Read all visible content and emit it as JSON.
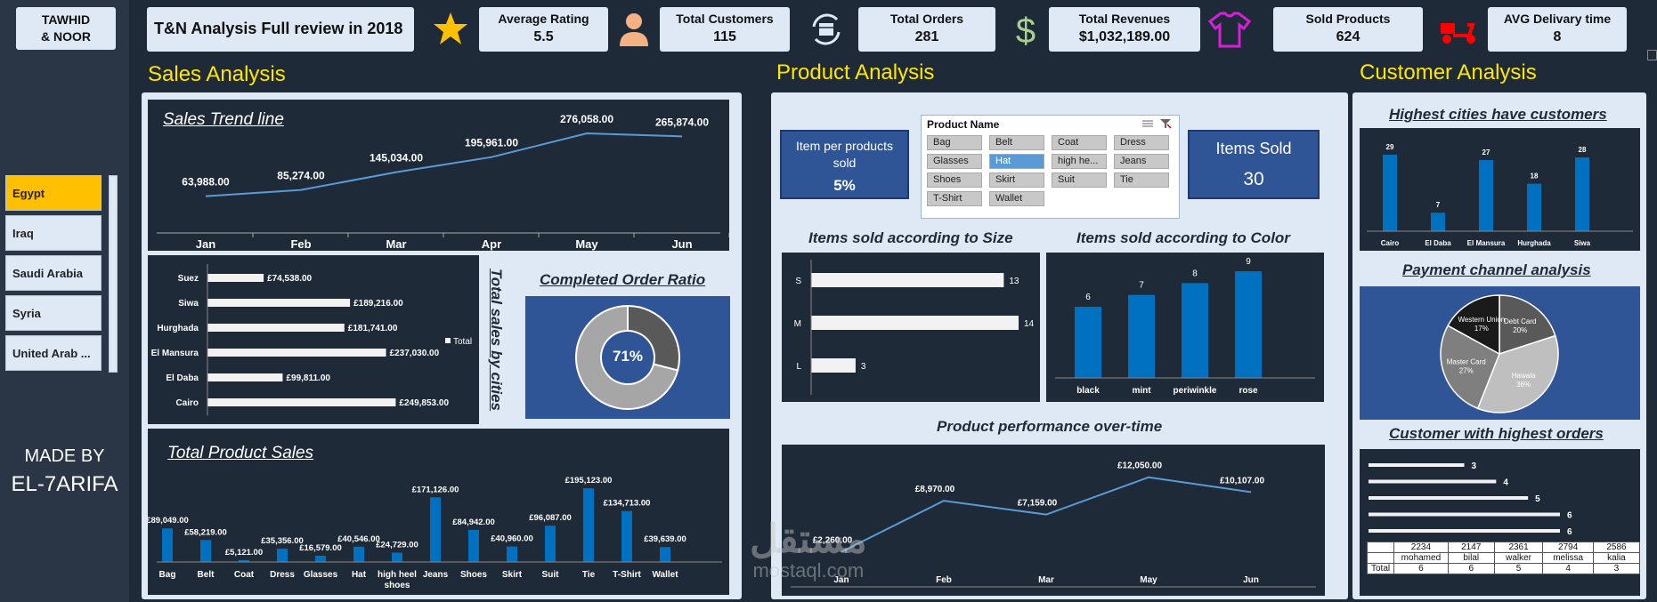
{
  "brand": {
    "line1": "TAWHID",
    "line2": "& NOOR"
  },
  "dashboard_title": "T&N Analysis Full review in 2018",
  "kpis": [
    {
      "label": "Average Rating",
      "value": "5.5"
    },
    {
      "label": "Total Customers",
      "value": "115"
    },
    {
      "label": "Total Orders",
      "value": "281"
    },
    {
      "label": "Total Revenues",
      "value": "$1,032,189.00"
    },
    {
      "label": "Sold Products",
      "value": "624"
    },
    {
      "label": "AVG Delivary time",
      "value": "8"
    }
  ],
  "icons": {
    "rating": "star-icon",
    "customers": "person-icon",
    "orders": "box-cycle-icon",
    "revenues": "dollar-icon",
    "products": "tshirt-icon",
    "delivery": "scooter-icon"
  },
  "colors": {
    "accent_yellow": "#ffe600",
    "bar_blue": "#0070c0",
    "panel_blue": "#2f5597",
    "dark": "#1f2a38",
    "light": "#dfe9f5",
    "selected": "#ffc000"
  },
  "country_slicer": {
    "items": [
      "Egypt",
      "Iraq",
      "Saudi Arabia",
      "Syria",
      "United Arab ..."
    ],
    "selected": "Egypt"
  },
  "made_by": {
    "line1": "MADE BY",
    "line2": "EL-7ARIFA"
  },
  "sections": {
    "sales": "Sales Analysis",
    "product": "Product Analysis",
    "customer": "Customer Analysis"
  },
  "product_slicer": {
    "header": "Product Name",
    "items": [
      "Bag",
      "Belt",
      "Coat",
      "Dress",
      "Glasses",
      "Hat",
      "high he...",
      "Jeans",
      "Shoes",
      "Skirt",
      "Suit",
      "Tie",
      "T-Shirt",
      "Wallet"
    ],
    "selected": "Hat"
  },
  "item_per_products": {
    "label": "Item per products sold",
    "value": "5%"
  },
  "items_sold": {
    "label": "Items Sold",
    "value": "30"
  },
  "completed_order_ratio": {
    "title": "Completed Order Ratio",
    "value": "71%"
  },
  "watermark": {
    "line1": "مستقل",
    "line2": "mostaql.com"
  },
  "chart_data": [
    {
      "id": "sales_trend",
      "type": "line",
      "title": "Sales Trend line",
      "categories": [
        "Jan",
        "Feb",
        "Mar",
        "Apr",
        "May",
        "Jun"
      ],
      "values": [
        63988,
        85274,
        145034,
        195961,
        276058,
        265874
      ],
      "labels": [
        "63,988.00",
        "85,274.00",
        "145,034.00",
        "195,961.00",
        "276,058.00",
        "265,874.00"
      ]
    },
    {
      "id": "sales_by_city",
      "type": "bar",
      "orientation": "horizontal",
      "title": "Total sales by cities",
      "legend": "Total",
      "categories": [
        "Suez",
        "Siwa",
        "Hurghada",
        "El Mansura",
        "El Daba",
        "Cairo"
      ],
      "values": [
        74538,
        189216,
        181741,
        237030,
        99811,
        249853
      ],
      "labels": [
        "£74,538.00",
        "£189,216.00",
        "£181,741.00",
        "£237,030.00",
        "£99,811.00",
        "£249,853.00"
      ]
    },
    {
      "id": "completed_ratio",
      "type": "pie",
      "variant": "donut",
      "title": "Completed Order Ratio",
      "values": [
        71,
        29
      ]
    },
    {
      "id": "total_product_sales",
      "type": "bar",
      "title": "Total Product Sales",
      "categories": [
        "Bag",
        "Belt",
        "Coat",
        "Dress",
        "Glasses",
        "Hat",
        "high heel shoes",
        "Jeans",
        "Shoes",
        "Skirt",
        "Suit",
        "Tie",
        "T-Shirt",
        "Wallet"
      ],
      "values": [
        89049,
        58219,
        5121,
        35356,
        16579,
        40546,
        24729,
        171126,
        84942,
        40960,
        96087,
        195123,
        134713,
        39639
      ],
      "labels": [
        "£89,049.00",
        "£58,219.00",
        "£5,121.00",
        "£35,356.00",
        "£16,579.00",
        "£40,546.00",
        "£24,729.00",
        "£171,126.00",
        "£84,942.00",
        "£40,960.00",
        "£96,087.00",
        "£195,123.00",
        "£134,713.00",
        "£39,639.00"
      ]
    },
    {
      "id": "items_by_size",
      "type": "bar",
      "orientation": "horizontal",
      "title": "Items sold according to Size",
      "categories": [
        "S",
        "M",
        "L"
      ],
      "values": [
        13,
        14,
        3
      ]
    },
    {
      "id": "items_by_color",
      "type": "bar",
      "title": "Items sold according to Color",
      "categories": [
        "black",
        "mint",
        "periwinkle",
        "rose"
      ],
      "values": [
        6,
        7,
        8,
        9
      ]
    },
    {
      "id": "product_performance",
      "type": "line",
      "title": "Product performance over-time",
      "categories": [
        "Jan",
        "Feb",
        "Mar",
        "May",
        "Jun"
      ],
      "values": [
        2260,
        8970,
        7159,
        12050,
        10107
      ],
      "labels": [
        "£2,260.00",
        "£8,970.00",
        "£7,159.00",
        "£12,050.00",
        "£10,107.00"
      ]
    },
    {
      "id": "cities_customers",
      "type": "bar",
      "title": "Highest cities have customers",
      "categories": [
        "Cairo",
        "El Daba",
        "El Mansura",
        "Hurghada",
        "Siwa"
      ],
      "values": [
        29,
        7,
        27,
        18,
        28
      ]
    },
    {
      "id": "payment_channel",
      "type": "pie",
      "title": "Payment channel analysis",
      "categories": [
        "Debt Card",
        "Hawala",
        "Master Card",
        "Western Union"
      ],
      "values": [
        20,
        36,
        27,
        17
      ],
      "labels": [
        "20%",
        "36%",
        "27%",
        "17%"
      ]
    },
    {
      "id": "top_customers",
      "type": "bar",
      "orientation": "horizontal",
      "title": "Customer with highest orders",
      "categories": [
        "mohamed",
        "bilal",
        "walker",
        "melissa",
        "kalia"
      ],
      "ids": [
        "2234",
        "2147",
        "2361",
        "2794",
        "2586"
      ],
      "values": [
        6,
        6,
        5,
        4,
        3
      ],
      "total_label": "Total"
    }
  ]
}
